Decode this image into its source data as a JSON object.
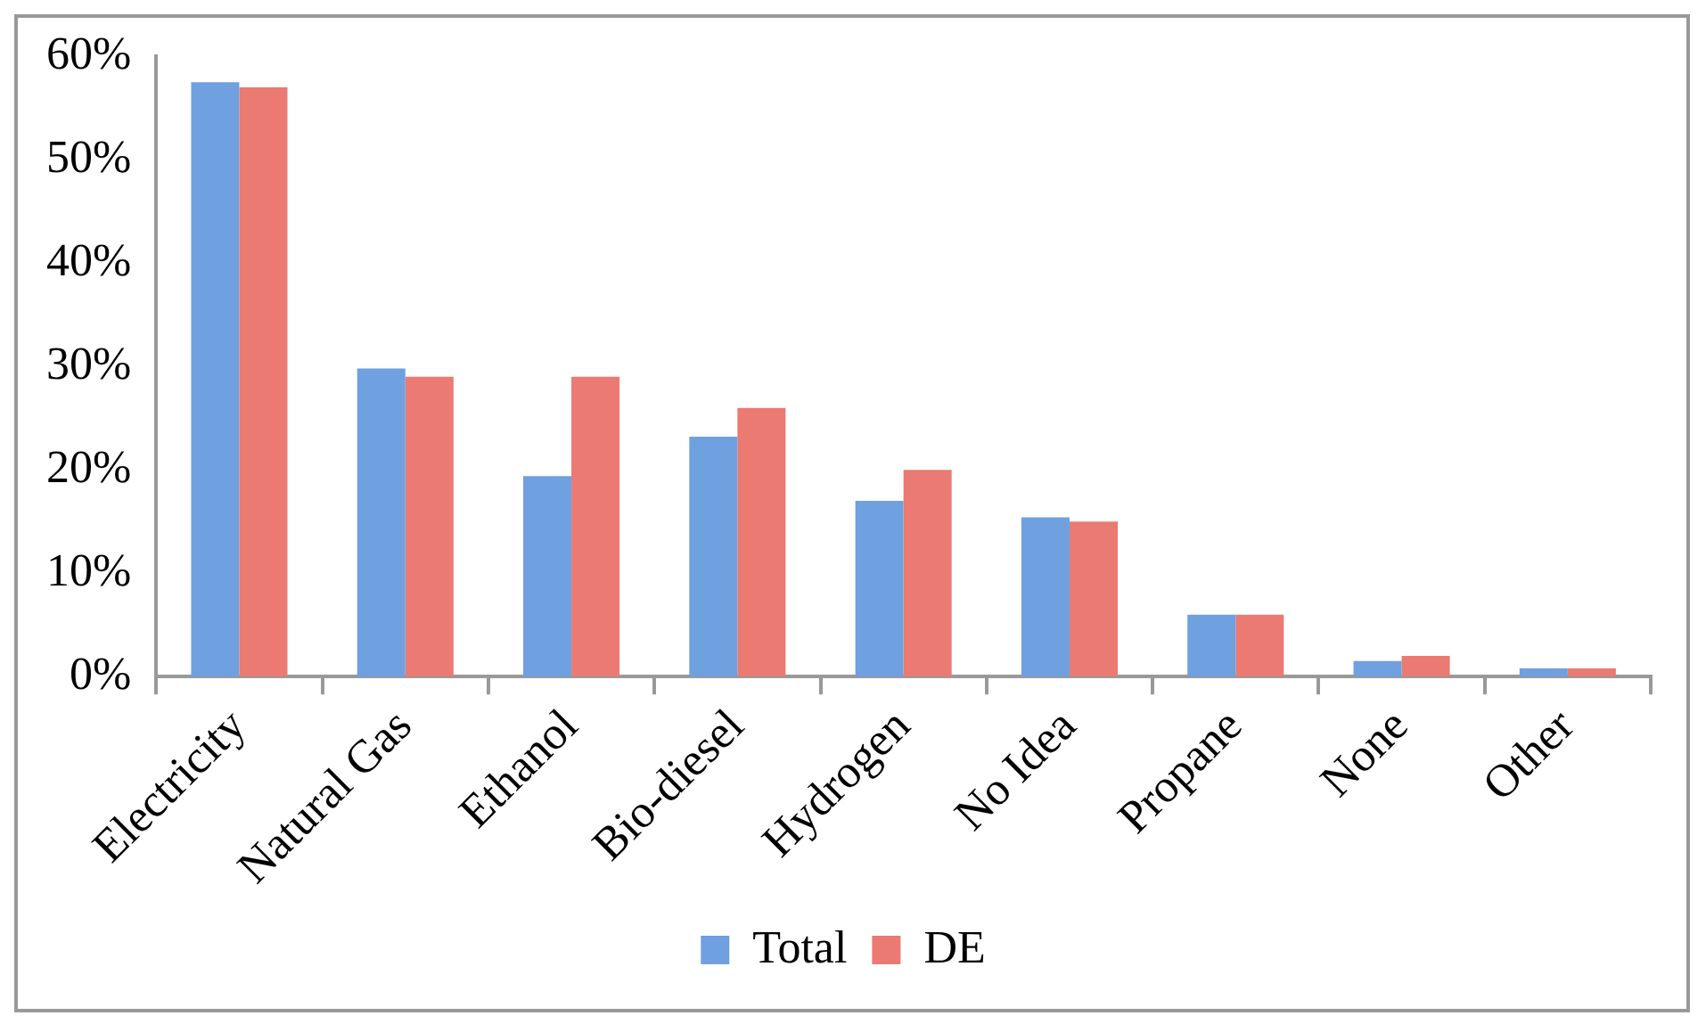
{
  "chart_data": {
    "type": "bar",
    "categories": [
      "Electricity",
      "Natural Gas",
      "Ethanol",
      "Bio-diesel",
      "Hydrogen",
      "No Idea",
      "Propane",
      "None",
      "Other"
    ],
    "series": [
      {
        "name": "Total",
        "color": "#6fa0e0",
        "values": [
          57.5,
          29.8,
          19.4,
          23.2,
          17,
          15.4,
          6,
          1.5,
          0.8
        ]
      },
      {
        "name": "DE",
        "color": "#ea7a72",
        "values": [
          57,
          29,
          29,
          26,
          20,
          15,
          6,
          2,
          0.8
        ]
      }
    ],
    "ylim": [
      0,
      60
    ],
    "yticks": [
      {
        "value": 0,
        "label": "0%"
      },
      {
        "value": 10,
        "label": "10%"
      },
      {
        "value": 20,
        "label": "20%"
      },
      {
        "value": 30,
        "label": "30%"
      },
      {
        "value": 40,
        "label": "40%"
      },
      {
        "value": 50,
        "label": "50%"
      },
      {
        "value": 60,
        "label": "60%"
      }
    ],
    "grid": false,
    "legend": "bottom"
  }
}
